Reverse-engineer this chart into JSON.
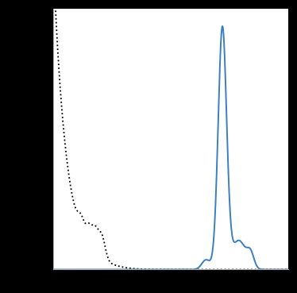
{
  "solid_color": "#3a7fc1",
  "dashed_color": "#000000",
  "solid_linewidth": 1.4,
  "dashed_linewidth": 1.3,
  "background_color": "#000000",
  "plot_bg_color": "#ffffff",
  "xlim": [
    0,
    1000
  ],
  "ylim": [
    0,
    1.05
  ],
  "figsize": [
    3.74,
    3.69
  ],
  "dpi": 100,
  "spine_color": "#aaaaaa"
}
